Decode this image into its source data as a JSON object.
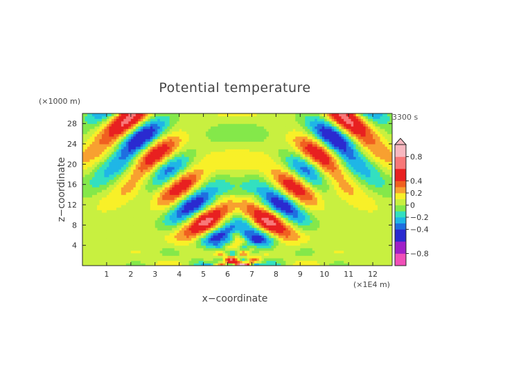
{
  "chart_data": {
    "type": "heatmap",
    "title": "Potential temperature",
    "xlabel": "x−coordinate",
    "ylabel": "z−coordinate",
    "x_unit": "(×1E4 m)",
    "y_unit": "(×1000 m)",
    "time_label": "3300 s",
    "xlim": [
      0,
      12.8
    ],
    "ylim": [
      0,
      30
    ],
    "x_ticks": [
      1,
      2,
      3,
      4,
      5,
      6,
      7,
      8,
      9,
      10,
      11,
      12
    ],
    "x_tick_labels": [
      "1",
      "2",
      "3",
      "4",
      "5",
      "6",
      "7",
      "8",
      "9",
      "10",
      "11",
      "12"
    ],
    "y_ticks": [
      4,
      8,
      12,
      16,
      20,
      24,
      28
    ],
    "y_tick_labels": [
      "4",
      "8",
      "12",
      "16",
      "20",
      "24",
      "28"
    ],
    "colorbar": {
      "range": [
        -1.0,
        1.0
      ],
      "ticks": [
        0.8,
        0.4,
        0.2,
        0,
        -0.2,
        -0.4,
        -0.8
      ],
      "tick_labels": [
        "0.8",
        "0.4",
        "0.2",
        "0",
        "−0.2",
        "−0.4",
        "−0.8"
      ],
      "levels": [
        {
          "min": -1.0,
          "max": -0.8,
          "color": "#f04fb8"
        },
        {
          "min": -0.8,
          "max": -0.6,
          "color": "#a020c8"
        },
        {
          "min": -0.6,
          "max": -0.4,
          "color": "#2a2ad0"
        },
        {
          "min": -0.4,
          "max": -0.3,
          "color": "#1f6fe0"
        },
        {
          "min": -0.3,
          "max": -0.2,
          "color": "#1fb6e6"
        },
        {
          "min": -0.2,
          "max": -0.1,
          "color": "#33e0c0"
        },
        {
          "min": -0.1,
          "max": 0.0,
          "color": "#84e84a"
        },
        {
          "min": 0.0,
          "max": 0.1,
          "color": "#c8f040"
        },
        {
          "min": 0.1,
          "max": 0.2,
          "color": "#f8f028"
        },
        {
          "min": 0.2,
          "max": 0.3,
          "color": "#f8a030"
        },
        {
          "min": 0.3,
          "max": 0.4,
          "color": "#f06020"
        },
        {
          "min": 0.4,
          "max": 0.6,
          "color": "#e82020"
        },
        {
          "min": 0.6,
          "max": 0.8,
          "color": "#f87878"
        },
        {
          "min": 0.8,
          "max": 1.0,
          "color": "#f8b8c0"
        }
      ]
    }
  }
}
